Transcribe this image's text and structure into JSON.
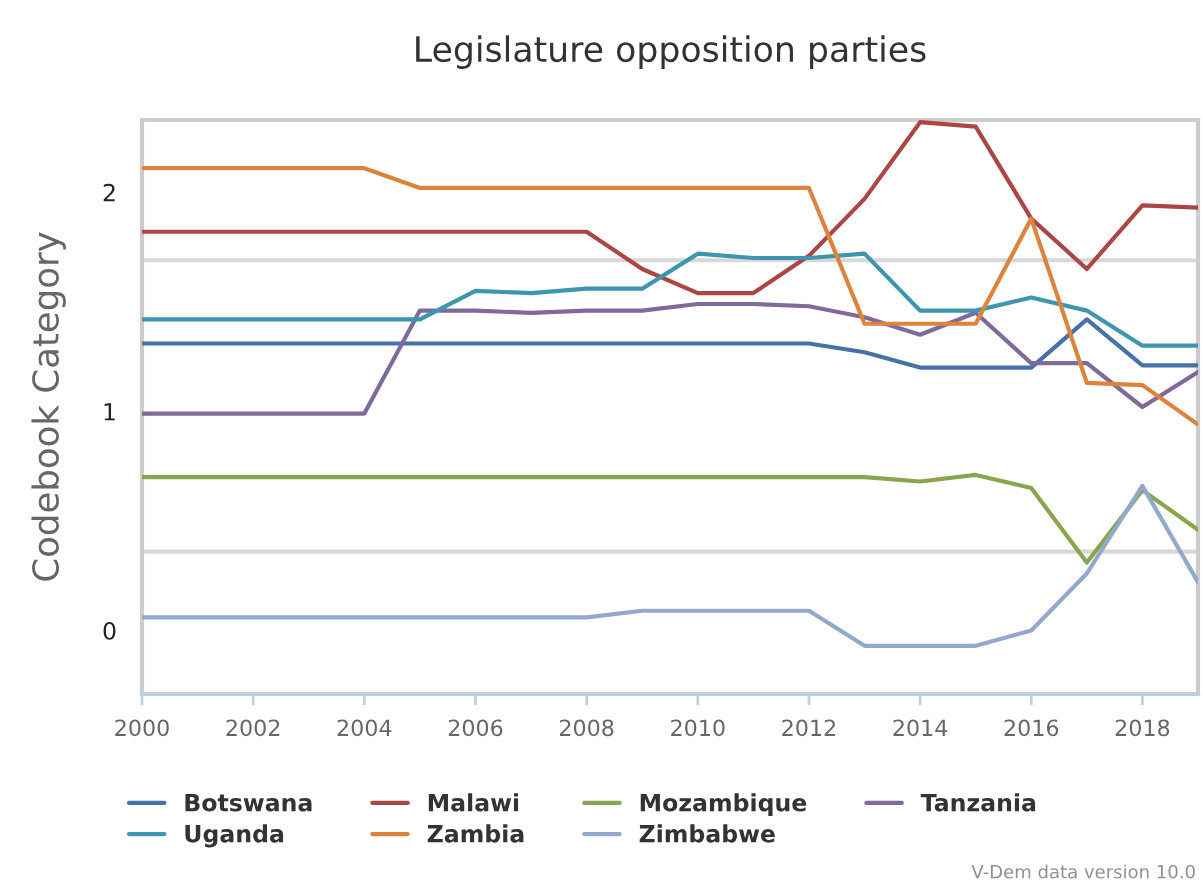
{
  "chart_data": {
    "type": "line",
    "title": "Legislature opposition parties",
    "ylabel": "Codebook Category",
    "annotations": [
      "V-Dem data version 10.0"
    ],
    "x": [
      2000,
      2001,
      2002,
      2003,
      2004,
      2005,
      2006,
      2007,
      2008,
      2009,
      2010,
      2011,
      2012,
      2013,
      2014,
      2015,
      2016,
      2017,
      2018,
      2019
    ],
    "series": [
      {
        "name": "Botswana",
        "color": "#4572a7",
        "values": [
          1.31,
          1.31,
          1.31,
          1.31,
          1.31,
          1.31,
          1.31,
          1.31,
          1.31,
          1.31,
          1.31,
          1.31,
          1.31,
          1.27,
          1.2,
          1.2,
          1.2,
          1.42,
          1.21,
          1.21
        ]
      },
      {
        "name": "Malawi",
        "color": "#aa4643",
        "values": [
          1.82,
          1.82,
          1.82,
          1.82,
          1.82,
          1.82,
          1.82,
          1.82,
          1.82,
          1.65,
          1.54,
          1.54,
          1.71,
          1.97,
          2.32,
          2.3,
          1.88,
          1.65,
          1.94,
          1.93
        ]
      },
      {
        "name": "Mozambique",
        "color": "#89a54e",
        "values": [
          0.7,
          0.7,
          0.7,
          0.7,
          0.7,
          0.7,
          0.7,
          0.7,
          0.7,
          0.7,
          0.7,
          0.7,
          0.7,
          0.7,
          0.68,
          0.71,
          0.65,
          0.31,
          0.64,
          0.46
        ]
      },
      {
        "name": "Tanzania",
        "color": "#80699b",
        "values": [
          0.99,
          0.99,
          0.99,
          0.99,
          0.99,
          1.46,
          1.46,
          1.45,
          1.46,
          1.46,
          1.49,
          1.49,
          1.48,
          1.43,
          1.35,
          1.45,
          1.22,
          1.22,
          1.02,
          1.18
        ]
      },
      {
        "name": "Uganda",
        "color": "#3d96ae",
        "values": [
          1.42,
          1.42,
          1.42,
          1.42,
          1.42,
          1.42,
          1.55,
          1.54,
          1.56,
          1.56,
          1.72,
          1.7,
          1.7,
          1.72,
          1.46,
          1.46,
          1.52,
          1.46,
          1.3,
          1.3
        ]
      },
      {
        "name": "Zambia",
        "color": "#db843d",
        "values": [
          2.11,
          2.11,
          2.11,
          2.11,
          2.11,
          2.02,
          2.02,
          2.02,
          2.02,
          2.02,
          2.02,
          2.02,
          2.02,
          1.4,
          1.4,
          1.4,
          1.88,
          1.13,
          1.12,
          0.94
        ]
      },
      {
        "name": "Zimbabwe",
        "color": "#92a8cd",
        "values": [
          0.06,
          0.06,
          0.06,
          0.06,
          0.06,
          0.06,
          0.06,
          0.06,
          0.06,
          0.09,
          0.09,
          0.09,
          0.09,
          -0.07,
          -0.07,
          -0.07,
          0.0,
          0.26,
          0.66,
          0.22
        ]
      }
    ],
    "xlim": [
      2000,
      2019
    ],
    "xticks": [
      2000,
      2002,
      2004,
      2006,
      2008,
      2010,
      2012,
      2014,
      2016,
      2018
    ],
    "ylim": [
      -0.29,
      2.33
    ],
    "yticks": [
      0,
      1,
      2
    ],
    "ref_lines": [
      {
        "axis": "y",
        "value": 1.69,
        "color": "#d8d8d8"
      },
      {
        "axis": "y",
        "value": 0.36,
        "color": "#d8d8d8"
      }
    ],
    "legend": "bottom",
    "line_style": "solid"
  }
}
